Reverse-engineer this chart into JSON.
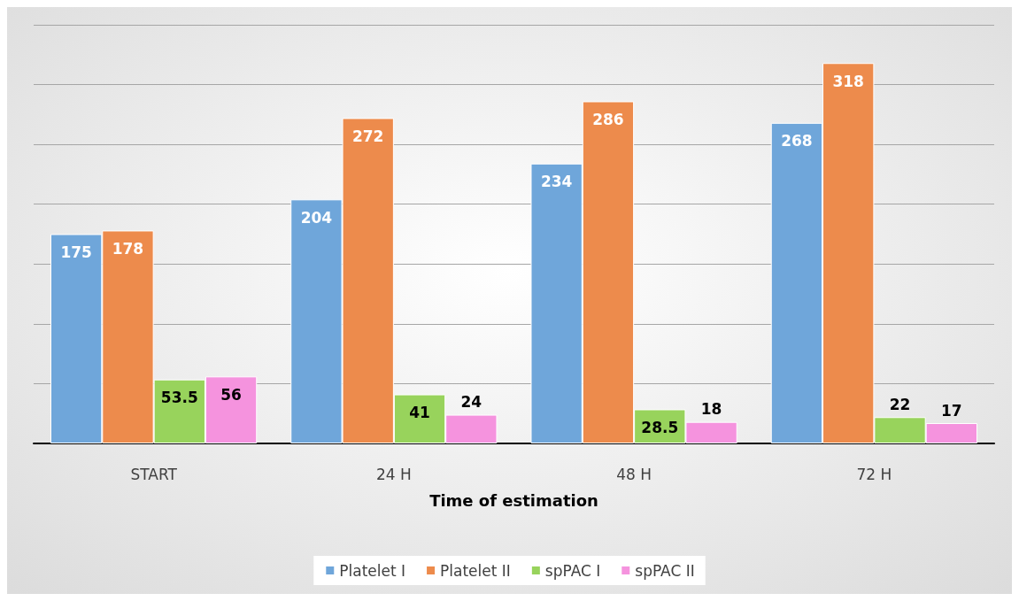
{
  "chart_data": {
    "type": "bar",
    "xlabel": "Time of estimation",
    "categories": [
      "START",
      "24 H",
      "48 H",
      "72 H"
    ],
    "series": [
      {
        "name": "Platelet I",
        "color": "#6fa6da",
        "values": [
          175,
          204,
          234,
          268
        ]
      },
      {
        "name": "Platelet II",
        "color": "#ed8b4c",
        "values": [
          178,
          272,
          286,
          318
        ]
      },
      {
        "name": "spPAC I",
        "color": "#98d35c",
        "values": [
          53.5,
          41,
          28.5,
          22
        ]
      },
      {
        "name": "spPAC II",
        "color": "#f593de",
        "values": [
          56,
          24,
          18,
          17
        ]
      }
    ],
    "ylim": [
      0,
      350
    ],
    "yticks": [
      {
        "value": 0,
        "label": null
      },
      {
        "value": 50,
        "label": null
      },
      {
        "value": 100,
        "label": null
      },
      {
        "value": 150,
        "label": null
      },
      {
        "value": 200,
        "label": null
      },
      {
        "value": 250,
        "label": null
      },
      {
        "value": 300,
        "label": null
      },
      {
        "value": 350,
        "label": null
      }
    ],
    "tick_labels": "x",
    "grid": "y",
    "legend": "bottom",
    "data_labels": true
  }
}
